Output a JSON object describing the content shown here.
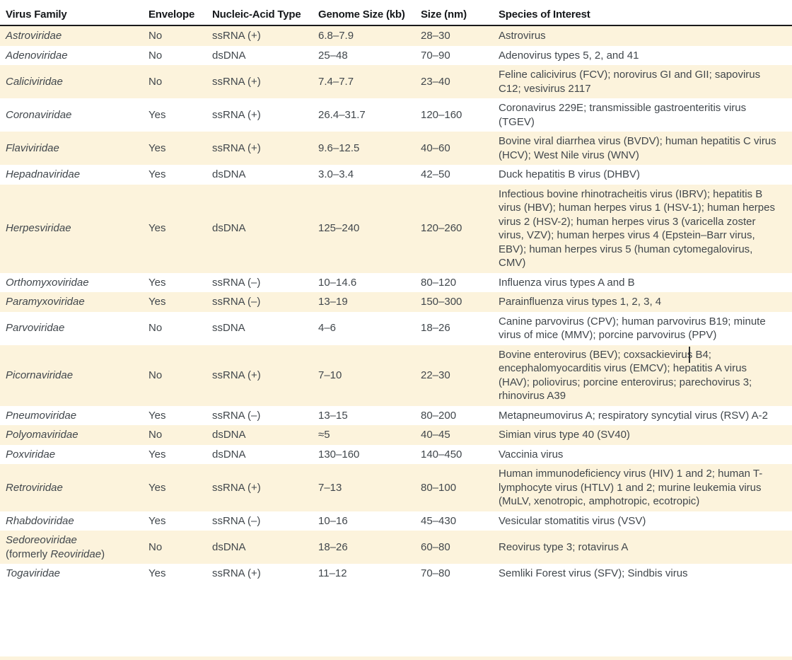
{
  "colors": {
    "stripe": "#fcf3dc",
    "body_text": "#41474c",
    "header_text": "#15181b",
    "header_rule": "#1a1a1a",
    "caret": "#2f3133"
  },
  "cursor": {
    "type": "text-caret",
    "note": "I-beam text cursor visible between 'porci' and 'ne' in Parvoviridae species text"
  },
  "table": {
    "columns": [
      {
        "key": "family",
        "label": "Virus Family"
      },
      {
        "key": "envelope",
        "label": "Envelope"
      },
      {
        "key": "nucleic_acid",
        "label": "Nucleic-Acid Type"
      },
      {
        "key": "genome_size",
        "label": "Genome Size (kb)"
      },
      {
        "key": "size_nm",
        "label": "Size (nm)"
      },
      {
        "key": "species",
        "label": "Species of Interest"
      }
    ],
    "rows": [
      {
        "family": "Astroviridae",
        "envelope": "No",
        "nucleic_acid": "ssRNA (+)",
        "genome_size": "6.8–7.9",
        "size_nm": "28–30",
        "species": "Astrovirus"
      },
      {
        "family": "Adenoviridae",
        "envelope": "No",
        "nucleic_acid": "dsDNA",
        "genome_size": "25–48",
        "size_nm": "70–90",
        "species": "Adenovirus types 5, 2, and 41"
      },
      {
        "family": "Caliciviridae",
        "envelope": "No",
        "nucleic_acid": "ssRNA (+)",
        "genome_size": "7.4–7.7",
        "size_nm": "23–40",
        "species": "Feline calicivirus (FCV); norovirus GI and GII; sapovirus C12; vesivirus 2117"
      },
      {
        "family": "Coronaviridae",
        "envelope": "Yes",
        "nucleic_acid": "ssRNA (+)",
        "genome_size": "26.4–31.7",
        "size_nm": "120–160",
        "species": "Coronavirus 229E; transmissible gastroenteritis virus (TGEV)"
      },
      {
        "family": "Flaviviridae",
        "envelope": "Yes",
        "nucleic_acid": "ssRNA (+)",
        "genome_size": "9.6–12.5",
        "size_nm": "40–60",
        "species": "Bovine viral diarrhea virus (BVDV); human hepatitis C virus (HCV); West Nile virus (WNV)"
      },
      {
        "family": "Hepadnaviridae",
        "envelope": "Yes",
        "nucleic_acid": "dsDNA",
        "genome_size": "3.0–3.4",
        "size_nm": "42–50",
        "species": "Duck hepatitis B virus (DHBV)"
      },
      {
        "family": "Herpesviridae",
        "envelope": "Yes",
        "nucleic_acid": "dsDNA",
        "genome_size": "125–240",
        "size_nm": "120–260",
        "species": "Infectious bovine rhinotracheitis virus (IBRV); hepatitis B virus (HBV); human herpes virus 1 (HSV-1); human herpes virus 2 (HSV-2); human herpes virus 3 (varicella zoster virus, VZV); human herpes virus 4 (Epstein–Barr virus, EBV); human herpes virus 5 (human cytomegalovirus, CMV)"
      },
      {
        "family": "Orthomyxoviridae",
        "envelope": "Yes",
        "nucleic_acid": "ssRNA (–)",
        "genome_size": "10–14.6",
        "size_nm": "80–120",
        "species": "Influenza virus types A and B"
      },
      {
        "family": "Paramyxoviridae",
        "envelope": "Yes",
        "nucleic_acid": "ssRNA (–)",
        "genome_size": "13–19",
        "size_nm": "150–300",
        "species": "Parainfluenza virus types 1, 2, 3, 4"
      },
      {
        "family": "Parvoviridae",
        "envelope": "No",
        "nucleic_acid": "ssDNA",
        "genome_size": "4–6",
        "size_nm": "18–26",
        "species": "Canine parvovirus (CPV); human parvovirus B19; minute virus of mice (MMV); porcine parvovirus (PPV)"
      },
      {
        "family": "Picornaviridae",
        "envelope": "No",
        "nucleic_acid": "ssRNA (+)",
        "genome_size": "7–10",
        "size_nm": "22–30",
        "species": "Bovine enterovirus (BEV); coxsackievirus B4; encephalomyocarditis virus (EMCV); hepatitis A virus (HAV); poliovirus; porcine enterovirus; parechovirus 3; rhinovirus A39"
      },
      {
        "family": "Pneumoviridae",
        "envelope": "Yes",
        "nucleic_acid": "ssRNA (–)",
        "genome_size": "13–15",
        "size_nm": "80–200",
        "species": "Metapneumovirus A; respiratory syncytial virus (RSV) A-2"
      },
      {
        "family": "Polyomaviridae",
        "envelope": "No",
        "nucleic_acid": "dsDNA",
        "genome_size": "≈5",
        "size_nm": "40–45",
        "species": "Simian virus type 40 (SV40)"
      },
      {
        "family": "Poxviridae",
        "envelope": "Yes",
        "nucleic_acid": "dsDNA",
        "genome_size": "130–160",
        "size_nm": "140–450",
        "species": "Vaccinia virus"
      },
      {
        "family": "Retroviridae",
        "envelope": "Yes",
        "nucleic_acid": "ssRNA (+)",
        "genome_size": "7–13",
        "size_nm": "80–100",
        "species": "Human immunodeficiency virus (HIV) 1 and 2; human T-lymphocyte virus (HTLV) 1 and 2; murine leukemia virus (MuLV, xenotropic, amphotropic, ecotropic)"
      },
      {
        "family": "Rhabdoviridae",
        "envelope": "Yes",
        "nucleic_acid": "ssRNA (–)",
        "genome_size": "10–16",
        "size_nm": "45–430",
        "species": "Vesicular stomatitis virus (VSV)"
      },
      {
        "family": "Sedoreoviridae",
        "family_note_parts": [
          {
            "text": "(formerly ",
            "italic": false
          },
          {
            "text": "Reoviridae",
            "italic": true
          },
          {
            "text": ")",
            "italic": false
          }
        ],
        "envelope": "No",
        "nucleic_acid": "dsDNA",
        "genome_size": "18–26",
        "size_nm": "60–80",
        "species": "Reovirus type 3; rotavirus A"
      },
      {
        "family": "Togaviridae",
        "envelope": "Yes",
        "nucleic_acid": "ssRNA (+)",
        "genome_size": "11–12",
        "size_nm": "70–80",
        "species": "Semliki Forest virus (SFV); Sindbis virus"
      }
    ]
  }
}
